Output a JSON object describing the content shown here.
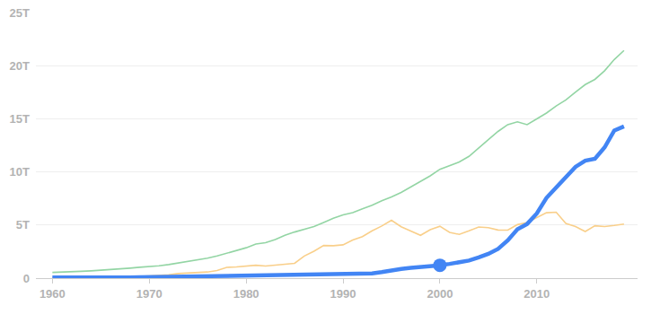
{
  "chart_data": {
    "type": "line",
    "x": [
      1960,
      1961,
      1962,
      1963,
      1964,
      1965,
      1966,
      1967,
      1968,
      1969,
      1970,
      1971,
      1972,
      1973,
      1974,
      1975,
      1976,
      1977,
      1978,
      1979,
      1980,
      1981,
      1982,
      1983,
      1984,
      1985,
      1986,
      1987,
      1988,
      1989,
      1990,
      1991,
      1992,
      1993,
      1994,
      1995,
      1996,
      1997,
      1998,
      1999,
      2000,
      2001,
      2002,
      2003,
      2004,
      2005,
      2006,
      2007,
      2008,
      2009,
      2010,
      2011,
      2012,
      2013,
      2014,
      2015,
      2016,
      2017,
      2018,
      2019
    ],
    "series": [
      {
        "color": "#93d5a4",
        "line_style": "solid",
        "values": [
          0.54,
          0.56,
          0.6,
          0.64,
          0.69,
          0.74,
          0.81,
          0.86,
          0.94,
          1.02,
          1.07,
          1.16,
          1.28,
          1.43,
          1.55,
          1.69,
          1.88,
          2.09,
          2.36,
          2.63,
          2.86,
          3.21,
          3.34,
          3.63,
          4.04,
          4.34,
          4.58,
          4.86,
          5.24,
          5.64,
          5.96,
          6.16,
          6.52,
          6.86,
          7.29,
          7.64,
          8.07,
          8.58,
          9.06,
          9.63,
          10.25,
          10.58,
          10.94,
          11.46,
          12.21,
          13.04,
          13.81,
          14.45,
          14.71,
          14.45,
          14.99,
          15.54,
          16.2,
          16.78,
          17.52,
          18.22,
          18.71,
          19.52,
          20.58,
          21.43
        ]
      },
      {
        "color": "#f9cf8a",
        "line_style": "solid",
        "values": [
          0.044,
          0.054,
          0.061,
          0.07,
          0.082,
          0.091,
          0.106,
          0.124,
          0.147,
          0.172,
          0.212,
          0.24,
          0.318,
          0.432,
          0.479,
          0.521,
          0.577,
          0.721,
          1.014,
          1.055,
          1.105,
          1.218,
          1.135,
          1.243,
          1.318,
          1.399,
          2.079,
          2.532,
          3.072,
          3.054,
          3.133,
          3.584,
          3.909,
          4.454,
          4.907,
          5.449,
          4.834,
          4.415,
          4.033,
          4.562,
          4.887,
          4.304,
          4.115,
          4.446,
          4.815,
          4.755,
          4.53,
          4.515,
          5.038,
          5.231,
          5.7,
          6.157,
          6.203,
          5.156,
          4.85,
          4.389,
          4.927,
          4.86,
          4.955,
          5.082
        ]
      },
      {
        "color": "#4285f4",
        "line_style": "thick",
        "values": [
          0.06,
          0.05,
          0.047,
          0.051,
          0.059,
          0.07,
          0.076,
          0.072,
          0.07,
          0.079,
          0.093,
          0.1,
          0.114,
          0.139,
          0.144,
          0.163,
          0.154,
          0.175,
          0.15,
          0.178,
          0.191,
          0.196,
          0.205,
          0.231,
          0.26,
          0.309,
          0.301,
          0.273,
          0.313,
          0.348,
          0.361,
          0.383,
          0.427,
          0.445,
          0.564,
          0.734,
          0.864,
          0.962,
          1.029,
          1.094,
          1.211,
          1.339,
          1.471,
          1.66,
          1.955,
          2.286,
          2.752,
          3.55,
          4.594,
          5.102,
          6.087,
          7.552,
          8.532,
          9.57,
          10.476,
          11.062,
          11.233,
          12.31,
          13.895,
          14.28
        ]
      },
      {
        "type": "scatter",
        "color": "#4285f4",
        "marker": "circle",
        "values": [
          null,
          null,
          null,
          null,
          null,
          null,
          null,
          null,
          null,
          null,
          null,
          null,
          null,
          null,
          null,
          null,
          null,
          null,
          null,
          null,
          null,
          null,
          null,
          null,
          null,
          null,
          null,
          null,
          null,
          null,
          null,
          null,
          null,
          null,
          null,
          null,
          null,
          null,
          null,
          null,
          1.211,
          null,
          null,
          null,
          null,
          null,
          null,
          null,
          null,
          null,
          null,
          null,
          null,
          null,
          null,
          null,
          null,
          null,
          null,
          null
        ]
      }
    ],
    "xlim": [
      1958.3,
      2020.4
    ],
    "xticks": [
      1960,
      1970,
      1980,
      1990,
      2000,
      2010
    ],
    "ylim": [
      0,
      25
    ],
    "yticks": [
      0,
      {
        "value": 5,
        "label": "5T"
      },
      {
        "value": 10,
        "label": "10T"
      },
      {
        "value": 15,
        "label": "15T"
      },
      {
        "value": 20,
        "label": "20T"
      },
      {
        "value": 25,
        "label": "25T"
      }
    ],
    "grid": "y"
  }
}
